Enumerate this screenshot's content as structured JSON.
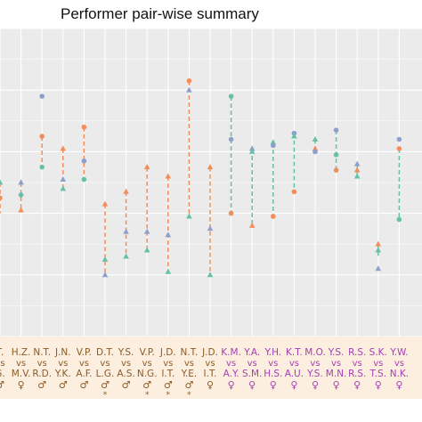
{
  "chart_data": {
    "type": "scatter",
    "title": "Performer pair-wise summary",
    "ylim": [
      0,
      1
    ],
    "grid": true,
    "legend": "none",
    "colors": {
      "panel": "#ebebeb",
      "grid": "#ffffff",
      "orange": "#f28e5c",
      "blue": "#8da0cb",
      "teal": "#66c2a5",
      "brown": "#8b5a24",
      "purple": "#a33fb3",
      "label_bg": "#fdefe0"
    },
    "pairs": [
      {
        "label": "T.",
        "sym": "♂",
        "star": "",
        "cat": "mixed",
        "top": 0.5,
        "bottom": 0.4,
        "markers": [
          {
            "v": 0.5,
            "c": "teal",
            "s": "triangle"
          },
          {
            "v": 0.45,
            "c": "orange",
            "s": "circle"
          }
        ]
      },
      {
        "label": "H.Z.",
        "sym": "♀",
        "star": "",
        "cat": "mixed",
        "top": 0.5,
        "bottom": 0.41,
        "markers": [
          {
            "v": 0.5,
            "c": "blue",
            "s": "triangle"
          },
          {
            "v": 0.46,
            "c": "teal",
            "s": "circle"
          },
          {
            "v": 0.41,
            "c": "orange",
            "s": "triangle"
          }
        ]
      },
      {
        "label": "N.T.",
        "sym": "♂",
        "star": "",
        "cat": "mixed",
        "top": 0.65,
        "bottom": 0.55,
        "markers": [
          {
            "v": 0.78,
            "c": "blue",
            "s": "circle"
          },
          {
            "v": 0.65,
            "c": "orange",
            "s": "circle"
          },
          {
            "v": 0.55,
            "c": "teal",
            "s": "circle"
          }
        ]
      },
      {
        "label": "J.N.",
        "sym": "♂",
        "star": "",
        "cat": "mixed",
        "top": 0.61,
        "bottom": 0.48,
        "markers": [
          {
            "v": 0.61,
            "c": "orange",
            "s": "triangle"
          },
          {
            "v": 0.51,
            "c": "blue",
            "s": "triangle"
          },
          {
            "v": 0.48,
            "c": "teal",
            "s": "triangle"
          }
        ]
      },
      {
        "label": "V.P.",
        "sym": "♂",
        "star": "",
        "cat": "mixed",
        "top": 0.68,
        "bottom": 0.51,
        "markers": [
          {
            "v": 0.68,
            "c": "orange",
            "s": "circle"
          },
          {
            "v": 0.57,
            "c": "blue",
            "s": "circle"
          },
          {
            "v": 0.51,
            "c": "teal",
            "s": "circle"
          }
        ]
      },
      {
        "label": "D.T.",
        "sym": "♂",
        "star": "*",
        "cat": "mixed",
        "top": 0.43,
        "bottom": 0.2,
        "markers": [
          {
            "v": 0.43,
            "c": "orange",
            "s": "triangle"
          },
          {
            "v": 0.25,
            "c": "teal",
            "s": "triangle"
          },
          {
            "v": 0.2,
            "c": "blue",
            "s": "triangle"
          }
        ]
      },
      {
        "label": "Y.S.",
        "sym": "♂",
        "star": "",
        "cat": "mixed",
        "top": 0.47,
        "bottom": 0.26,
        "markers": [
          {
            "v": 0.47,
            "c": "orange",
            "s": "triangle"
          },
          {
            "v": 0.34,
            "c": "blue",
            "s": "triangle"
          },
          {
            "v": 0.26,
            "c": "teal",
            "s": "triangle"
          }
        ]
      },
      {
        "label": "V.P.",
        "sym": "♂",
        "star": "*",
        "cat": "mixed",
        "top": 0.55,
        "bottom": 0.28,
        "markers": [
          {
            "v": 0.55,
            "c": "orange",
            "s": "triangle"
          },
          {
            "v": 0.34,
            "c": "blue",
            "s": "triangle"
          },
          {
            "v": 0.28,
            "c": "teal",
            "s": "triangle"
          }
        ]
      },
      {
        "label": "J.D.",
        "sym": "♂",
        "star": "*",
        "cat": "mixed",
        "top": 0.52,
        "bottom": 0.21,
        "markers": [
          {
            "v": 0.52,
            "c": "orange",
            "s": "triangle"
          },
          {
            "v": 0.33,
            "c": "blue",
            "s": "triangle"
          },
          {
            "v": 0.21,
            "c": "teal",
            "s": "triangle"
          }
        ]
      },
      {
        "label": "N.T.",
        "sym": "♂",
        "star": "*",
        "cat": "mixed",
        "top": 0.83,
        "bottom": 0.39,
        "markers": [
          {
            "v": 0.83,
            "c": "orange",
            "s": "circle"
          },
          {
            "v": 0.8,
            "c": "blue",
            "s": "triangle"
          },
          {
            "v": 0.39,
            "c": "teal",
            "s": "triangle"
          }
        ]
      },
      {
        "label": "J.D.",
        "sym": "♀",
        "star": "",
        "cat": "mixed",
        "top": 0.55,
        "bottom": 0.2,
        "markers": [
          {
            "v": 0.55,
            "c": "orange",
            "s": "triangle"
          },
          {
            "v": 0.35,
            "c": "blue",
            "s": "triangle"
          },
          {
            "v": 0.2,
            "c": "teal",
            "s": "triangle"
          }
        ]
      },
      {
        "label": "K.M.",
        "sym": "♀",
        "star": "",
        "cat": "female",
        "top": 0.78,
        "bottom": 0.4,
        "markers": [
          {
            "v": 0.78,
            "c": "teal",
            "s": "circle"
          },
          {
            "v": 0.64,
            "c": "blue",
            "s": "circle"
          },
          {
            "v": 0.4,
            "c": "orange",
            "s": "circle"
          }
        ]
      },
      {
        "label": "Y.A.",
        "sym": "♀",
        "star": "",
        "cat": "female",
        "top": 0.61,
        "bottom": 0.36,
        "markers": [
          {
            "v": 0.61,
            "c": "blue",
            "s": "triangle"
          },
          {
            "v": 0.6,
            "c": "teal",
            "s": "triangle"
          },
          {
            "v": 0.36,
            "c": "orange",
            "s": "triangle"
          }
        ]
      },
      {
        "label": "Y.H.",
        "sym": "♀",
        "star": "",
        "cat": "female",
        "top": 0.63,
        "bottom": 0.39,
        "markers": [
          {
            "v": 0.63,
            "c": "teal",
            "s": "triangle"
          },
          {
            "v": 0.62,
            "c": "blue",
            "s": "circle"
          },
          {
            "v": 0.39,
            "c": "orange",
            "s": "circle"
          }
        ]
      },
      {
        "label": "K.T.",
        "sym": "♀",
        "star": "",
        "cat": "female",
        "top": 0.66,
        "bottom": 0.47,
        "markers": [
          {
            "v": 0.66,
            "c": "blue",
            "s": "circle"
          },
          {
            "v": 0.65,
            "c": "teal",
            "s": "triangle"
          },
          {
            "v": 0.47,
            "c": "orange",
            "s": "circle"
          }
        ]
      },
      {
        "label": "M.O.",
        "sym": "♀",
        "star": "",
        "cat": "female",
        "top": 0.64,
        "bottom": 0.6,
        "markers": [
          {
            "v": 0.64,
            "c": "teal",
            "s": "triangle"
          },
          {
            "v": 0.61,
            "c": "orange",
            "s": "triangle"
          },
          {
            "v": 0.6,
            "c": "blue",
            "s": "circle"
          }
        ]
      },
      {
        "label": "Y.S.",
        "sym": "♀",
        "star": "",
        "cat": "female",
        "top": 0.67,
        "bottom": 0.54,
        "markers": [
          {
            "v": 0.67,
            "c": "blue",
            "s": "circle"
          },
          {
            "v": 0.59,
            "c": "teal",
            "s": "circle"
          },
          {
            "v": 0.54,
            "c": "orange",
            "s": "circle"
          }
        ]
      },
      {
        "label": "R.S.",
        "sym": "♀",
        "star": "",
        "cat": "female",
        "top": 0.56,
        "bottom": 0.52,
        "markers": [
          {
            "v": 0.56,
            "c": "blue",
            "s": "triangle"
          },
          {
            "v": 0.54,
            "c": "orange",
            "s": "triangle"
          },
          {
            "v": 0.52,
            "c": "teal",
            "s": "triangle"
          }
        ]
      },
      {
        "label": "S.K.",
        "sym": "♀",
        "star": "",
        "cat": "female",
        "top": 0.3,
        "bottom": 0.26,
        "markers": [
          {
            "v": 0.3,
            "c": "orange",
            "s": "triangle"
          },
          {
            "v": 0.28,
            "c": "teal",
            "s": "triangle"
          },
          {
            "v": 0.22,
            "c": "blue",
            "s": "triangle"
          }
        ]
      },
      {
        "label": "Y.W.",
        "sym": "♀",
        "star": "",
        "cat": "female",
        "top": 0.61,
        "bottom": 0.38,
        "markers": [
          {
            "v": 0.64,
            "c": "blue",
            "s": "circle"
          },
          {
            "v": 0.61,
            "c": "orange",
            "s": "circle"
          },
          {
            "v": 0.38,
            "c": "teal",
            "s": "circle"
          }
        ]
      }
    ],
    "partners": [
      "G.",
      "M.V.",
      "R.D.",
      "Y.K.",
      "A.F.",
      "L.G.",
      "A.S.",
      "N.G.",
      "I.T.",
      "Y.E.",
      "I.T.",
      "A.Y.",
      "S.M.",
      "H.S.",
      "A.U.",
      "Y.S.",
      "M.N.",
      "R.S.",
      "T.S.",
      "N.K."
    ]
  }
}
